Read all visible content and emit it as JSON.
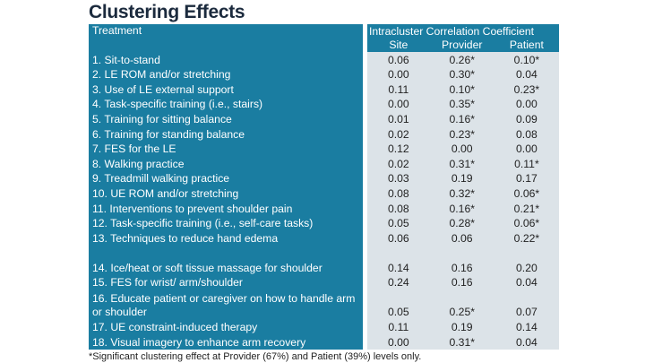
{
  "title": "Clustering Effects",
  "table": {
    "treatment_header": "Treatment",
    "group_header": "Intracluster Correlation Coefficient",
    "columns": [
      "Site",
      "Provider",
      "Patient"
    ],
    "rows": [
      {
        "label": "1. Sit-to-stand",
        "site": "0.06",
        "provider": "0.26*",
        "patient": "0.10*"
      },
      {
        "label": "2. LE ROM and/or stretching",
        "site": "0.00",
        "provider": "0.30*",
        "patient": "0.04"
      },
      {
        "label": "3. Use of LE external support",
        "site": "0.11",
        "provider": "0.10*",
        "patient": "0.23*"
      },
      {
        "label": "4. Task-specific training (i.e., stairs)",
        "site": "0.00",
        "provider": "0.35*",
        "patient": "0.00"
      },
      {
        "label": "5. Training for sitting balance",
        "site": "0.01",
        "provider": "0.16*",
        "patient": "0.09"
      },
      {
        "label": "6. Training for standing balance",
        "site": "0.02",
        "provider": "0.23*",
        "patient": "0.08"
      },
      {
        "label": "7. FES for the LE",
        "site": "0.12",
        "provider": "0.00",
        "patient": "0.00"
      },
      {
        "label": "8. Walking practice",
        "site": "0.02",
        "provider": "0.31*",
        "patient": "0.11*"
      },
      {
        "label": "9. Treadmill walking practice",
        "site": "0.03",
        "provider": "0.19",
        "patient": "0.17"
      },
      {
        "label": "10. UE ROM and/or stretching",
        "site": "0.08",
        "provider": "0.32*",
        "patient": "0.06*"
      },
      {
        "label": "11. Interventions to prevent shoulder pain",
        "site": "0.08",
        "provider": "0.16*",
        "patient": "0.21*"
      },
      {
        "label": "12. Task-specific training (i.e., self-care tasks)",
        "site": "0.05",
        "provider": "0.28*",
        "patient": "0.06*"
      },
      {
        "label": "13. Techniques to reduce hand edema",
        "site": "0.06",
        "provider": "0.06",
        "patient": "0.22*"
      },
      {
        "label": "14. Ice/heat or soft tissue massage for shoulder",
        "site": "0.14",
        "provider": "0.16",
        "patient": "0.20"
      },
      {
        "label": "15. FES for wrist/ arm/shoulder",
        "site": "0.24",
        "provider": "0.16",
        "patient": "0.04"
      },
      {
        "label": "16. Educate patient or caregiver on how to handle arm or shoulder",
        "site": "0.05",
        "provider": "0.25*",
        "patient": "0.07"
      },
      {
        "label": "17. UE constraint-induced therapy",
        "site": "0.11",
        "provider": "0.19",
        "patient": "0.14"
      },
      {
        "label": "18. Visual imagery to enhance arm recovery",
        "site": "0.00",
        "provider": "0.31*",
        "patient": "0.04"
      }
    ]
  },
  "footnote": "*Significant clustering effect at Provider (67%) and Patient (39%) levels only."
}
